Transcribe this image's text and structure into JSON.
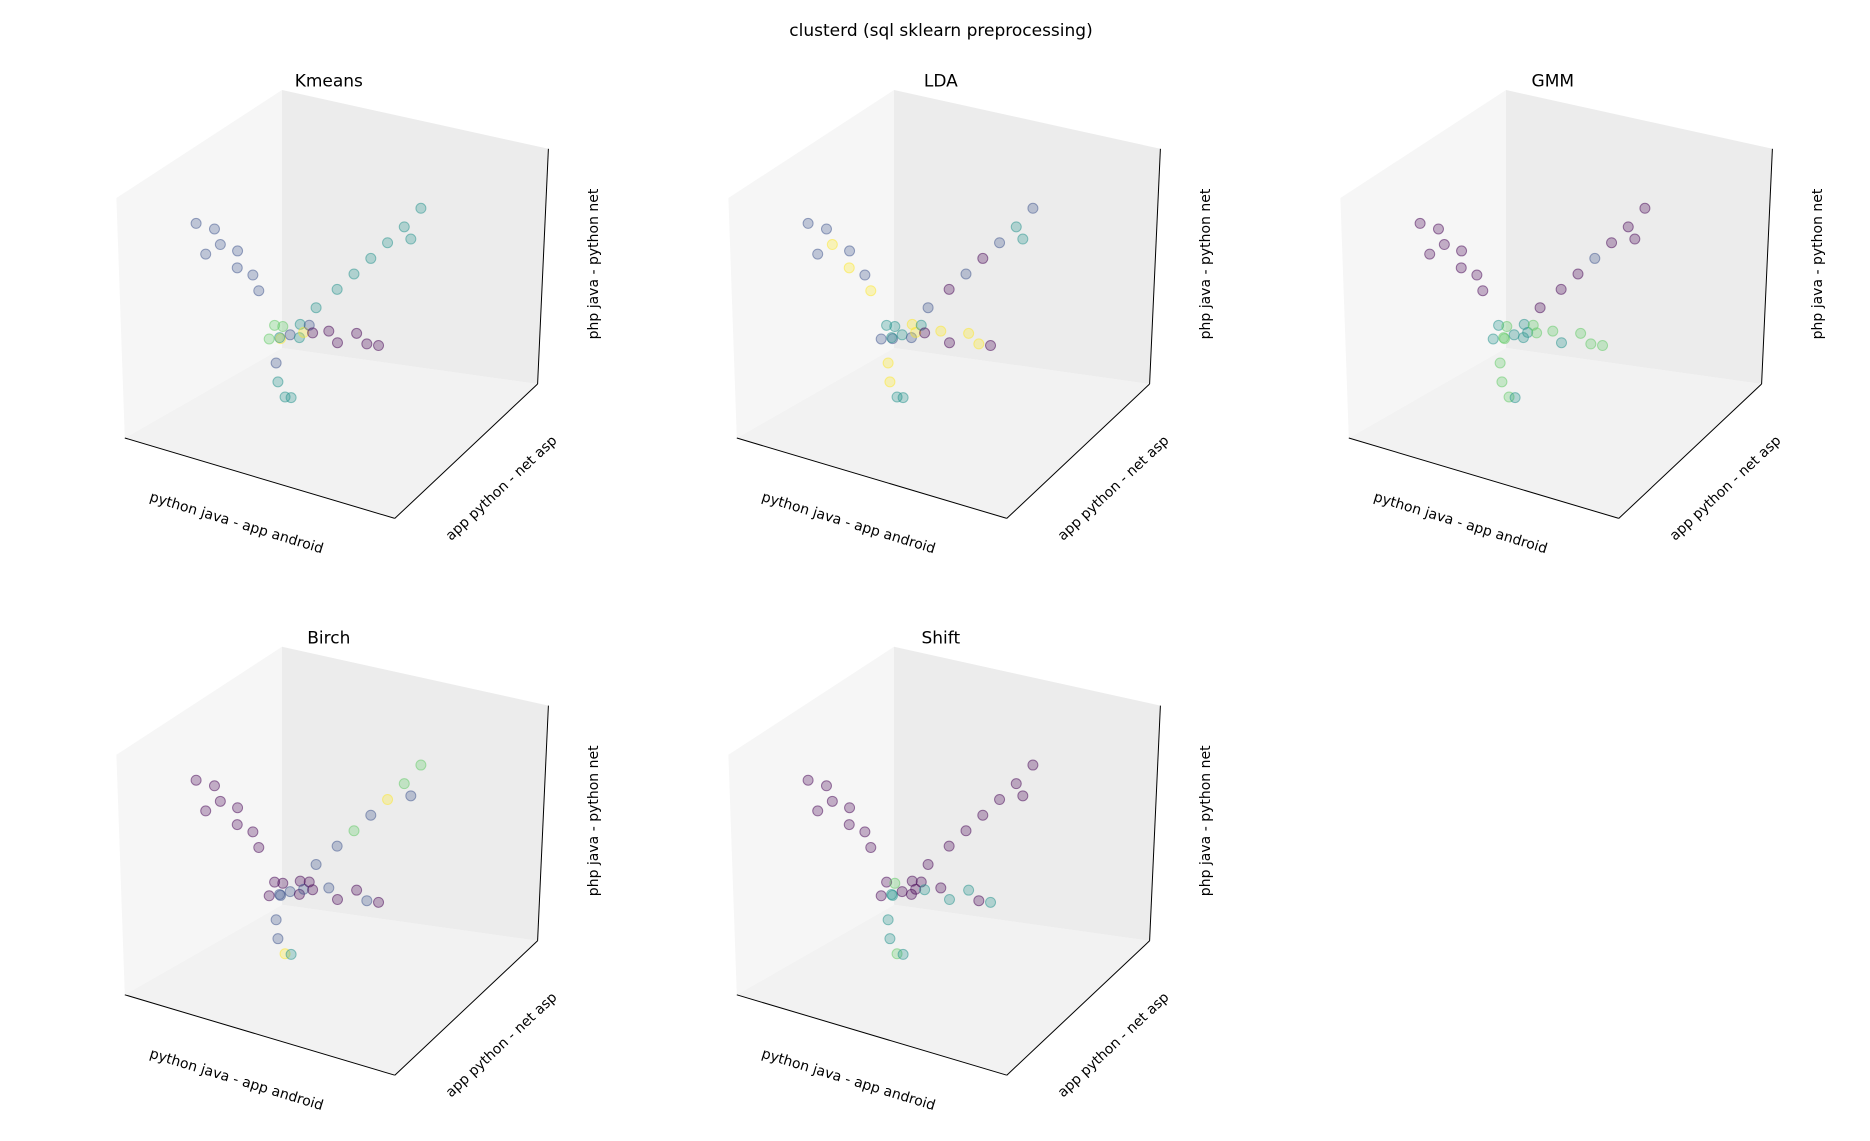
{
  "title": "clusterd (sql sklearn preprocessing)",
  "chart_data": [
    {
      "type": "scatter3d",
      "title": "Kmeans",
      "xlabel": "python java  -  app android",
      "ylabel": "app python  -  net asp",
      "zlabel": "php java  -  python net",
      "xlim": [
        0,
        1
      ],
      "ylim": [
        0,
        1
      ],
      "zlim": [
        0,
        1
      ],
      "colormap": [
        "#440154",
        "#3b528b",
        "#21918c",
        "#5ec962",
        "#fde725"
      ],
      "x": [
        0.02,
        0.06,
        0.1,
        0.13,
        0.17,
        0.2,
        0.24,
        0.08,
        0.4,
        0.44,
        0.47,
        0.5,
        0.53,
        0.56,
        0.59,
        0.62,
        0.3,
        0.34,
        0.38,
        0.33,
        0.36,
        0.4,
        0.29,
        0.37,
        0.32,
        0.42,
        0.45,
        0.5,
        0.55,
        0.6,
        0.65,
        0.7,
        0.33,
        0.38,
        0.3,
        0.42
      ],
      "y": [
        0.42,
        0.47,
        0.44,
        0.5,
        0.43,
        0.48,
        0.45,
        0.38,
        0.55,
        0.62,
        0.68,
        0.74,
        0.8,
        0.86,
        0.92,
        0.8,
        0.45,
        0.42,
        0.48,
        0.5,
        0.4,
        0.44,
        0.5,
        0.52,
        0.38,
        0.47,
        0.44,
        0.46,
        0.43,
        0.47,
        0.45,
        0.44,
        0.42,
        0.38,
        0.46,
        0.35
      ],
      "z": [
        0.69,
        0.66,
        0.62,
        0.58,
        0.55,
        0.51,
        0.47,
        0.6,
        0.4,
        0.45,
        0.49,
        0.53,
        0.57,
        0.61,
        0.66,
        0.6,
        0.35,
        0.32,
        0.36,
        0.3,
        0.38,
        0.33,
        0.28,
        0.31,
        0.33,
        0.37,
        0.36,
        0.37,
        0.35,
        0.38,
        0.36,
        0.37,
        0.15,
        0.12,
        0.2,
        0.14
      ],
      "c": [
        1,
        1,
        1,
        1,
        1,
        1,
        1,
        1,
        2,
        2,
        2,
        2,
        2,
        2,
        2,
        2,
        3,
        4,
        2,
        1,
        3,
        2,
        2,
        4,
        3,
        1,
        0,
        0,
        0,
        0,
        0,
        0,
        2,
        2,
        1,
        2
      ]
    },
    {
      "type": "scatter3d",
      "title": "LDA",
      "xlabel": "python java  -  app android",
      "ylabel": "app python  -  net asp",
      "zlabel": "php java  -  python net",
      "xlim": [
        0,
        1
      ],
      "ylim": [
        0,
        1
      ],
      "zlim": [
        0,
        1
      ],
      "colormap": [
        "#440154",
        "#3b528b",
        "#21918c",
        "#5ec962",
        "#fde725"
      ],
      "x": [
        0.02,
        0.06,
        0.1,
        0.13,
        0.17,
        0.2,
        0.24,
        0.08,
        0.4,
        0.44,
        0.47,
        0.5,
        0.53,
        0.56,
        0.59,
        0.62,
        0.3,
        0.34,
        0.38,
        0.33,
        0.36,
        0.4,
        0.29,
        0.37,
        0.32,
        0.42,
        0.45,
        0.5,
        0.55,
        0.6,
        0.65,
        0.7,
        0.33,
        0.38,
        0.3,
        0.42
      ],
      "y": [
        0.42,
        0.47,
        0.44,
        0.5,
        0.43,
        0.48,
        0.45,
        0.38,
        0.55,
        0.62,
        0.68,
        0.74,
        0.8,
        0.86,
        0.92,
        0.8,
        0.45,
        0.42,
        0.48,
        0.5,
        0.4,
        0.44,
        0.5,
        0.52,
        0.38,
        0.47,
        0.44,
        0.46,
        0.43,
        0.47,
        0.45,
        0.44,
        0.42,
        0.38,
        0.46,
        0.35
      ],
      "z": [
        0.69,
        0.66,
        0.62,
        0.58,
        0.55,
        0.51,
        0.47,
        0.6,
        0.4,
        0.45,
        0.49,
        0.53,
        0.57,
        0.61,
        0.66,
        0.6,
        0.35,
        0.32,
        0.36,
        0.3,
        0.38,
        0.33,
        0.28,
        0.31,
        0.33,
        0.37,
        0.36,
        0.37,
        0.35,
        0.38,
        0.36,
        0.37,
        0.15,
        0.12,
        0.2,
        0.14
      ],
      "c": [
        1,
        1,
        4,
        1,
        4,
        1,
        4,
        1,
        1,
        0,
        1,
        0,
        1,
        2,
        1,
        2,
        2,
        1,
        4,
        2,
        2,
        1,
        2,
        4,
        1,
        2,
        0,
        4,
        0,
        4,
        4,
        0,
        4,
        2,
        4,
        2
      ]
    },
    {
      "type": "scatter3d",
      "title": "GMM",
      "xlabel": "python java  -  app android",
      "ylabel": "app python  -  net asp",
      "zlabel": "php java  -  python net",
      "xlim": [
        0,
        1
      ],
      "ylim": [
        0,
        1
      ],
      "zlim": [
        0,
        1
      ],
      "colormap": [
        "#440154",
        "#3b528b",
        "#21918c",
        "#5ec962",
        "#fde725"
      ],
      "x": [
        0.02,
        0.06,
        0.1,
        0.13,
        0.17,
        0.2,
        0.24,
        0.08,
        0.4,
        0.44,
        0.47,
        0.5,
        0.53,
        0.56,
        0.59,
        0.62,
        0.3,
        0.34,
        0.38,
        0.33,
        0.36,
        0.4,
        0.29,
        0.37,
        0.32,
        0.42,
        0.45,
        0.5,
        0.55,
        0.6,
        0.65,
        0.7,
        0.33,
        0.38,
        0.3,
        0.42
      ],
      "y": [
        0.42,
        0.47,
        0.44,
        0.5,
        0.43,
        0.48,
        0.45,
        0.38,
        0.55,
        0.62,
        0.68,
        0.74,
        0.8,
        0.86,
        0.92,
        0.8,
        0.45,
        0.42,
        0.48,
        0.5,
        0.4,
        0.44,
        0.5,
        0.52,
        0.38,
        0.47,
        0.44,
        0.46,
        0.43,
        0.47,
        0.45,
        0.44,
        0.42,
        0.38,
        0.46,
        0.35
      ],
      "z": [
        0.69,
        0.66,
        0.62,
        0.58,
        0.55,
        0.51,
        0.47,
        0.6,
        0.4,
        0.45,
        0.49,
        0.53,
        0.57,
        0.61,
        0.66,
        0.6,
        0.35,
        0.32,
        0.36,
        0.3,
        0.38,
        0.33,
        0.28,
        0.31,
        0.33,
        0.37,
        0.36,
        0.37,
        0.35,
        0.38,
        0.36,
        0.37,
        0.15,
        0.12,
        0.2,
        0.14
      ],
      "c": [
        0,
        0,
        0,
        0,
        0,
        0,
        0,
        0,
        0,
        0,
        0,
        1,
        0,
        0,
        0,
        0,
        2,
        3,
        2,
        2,
        3,
        2,
        3,
        2,
        2,
        3,
        3,
        3,
        2,
        3,
        3,
        3,
        3,
        3,
        3,
        2
      ]
    },
    {
      "type": "scatter3d",
      "title": "Birch",
      "xlabel": "python java  -  app android",
      "ylabel": "app python  -  net asp",
      "zlabel": "php java  -  python net",
      "xlim": [
        0,
        1
      ],
      "ylim": [
        0,
        1
      ],
      "zlim": [
        0,
        1
      ],
      "colormap": [
        "#440154",
        "#3b528b",
        "#21918c",
        "#5ec962",
        "#fde725"
      ],
      "x": [
        0.02,
        0.06,
        0.1,
        0.13,
        0.17,
        0.2,
        0.24,
        0.08,
        0.4,
        0.44,
        0.47,
        0.5,
        0.53,
        0.56,
        0.59,
        0.62,
        0.3,
        0.34,
        0.38,
        0.33,
        0.36,
        0.4,
        0.29,
        0.37,
        0.32,
        0.42,
        0.45,
        0.5,
        0.55,
        0.6,
        0.65,
        0.7,
        0.33,
        0.38,
        0.3,
        0.42
      ],
      "y": [
        0.42,
        0.47,
        0.44,
        0.5,
        0.43,
        0.48,
        0.45,
        0.38,
        0.55,
        0.62,
        0.68,
        0.74,
        0.8,
        0.86,
        0.92,
        0.8,
        0.45,
        0.42,
        0.48,
        0.5,
        0.4,
        0.44,
        0.5,
        0.52,
        0.38,
        0.47,
        0.44,
        0.46,
        0.43,
        0.47,
        0.45,
        0.44,
        0.42,
        0.38,
        0.46,
        0.35
      ],
      "z": [
        0.69,
        0.66,
        0.62,
        0.58,
        0.55,
        0.51,
        0.47,
        0.6,
        0.4,
        0.45,
        0.49,
        0.53,
        0.57,
        0.61,
        0.66,
        0.6,
        0.35,
        0.32,
        0.36,
        0.3,
        0.38,
        0.33,
        0.28,
        0.31,
        0.33,
        0.37,
        0.36,
        0.37,
        0.35,
        0.38,
        0.36,
        0.37,
        0.15,
        0.12,
        0.2,
        0.14
      ],
      "c": [
        0,
        0,
        0,
        0,
        0,
        0,
        0,
        0,
        1,
        1,
        3,
        1,
        4,
        3,
        3,
        1,
        0,
        1,
        0,
        1,
        0,
        0,
        1,
        1,
        0,
        0,
        0,
        1,
        0,
        0,
        1,
        0,
        1,
        4,
        1,
        2
      ]
    },
    {
      "type": "scatter3d",
      "title": "Shift",
      "xlabel": "python java  -  app android",
      "ylabel": "app python  -  net asp",
      "zlabel": "php java  -  python net",
      "xlim": [
        0,
        1
      ],
      "ylim": [
        0,
        1
      ],
      "zlim": [
        0,
        1
      ],
      "colormap": [
        "#440154",
        "#3b528b",
        "#21918c",
        "#5ec962",
        "#fde725"
      ],
      "x": [
        0.02,
        0.06,
        0.1,
        0.13,
        0.17,
        0.2,
        0.24,
        0.08,
        0.4,
        0.44,
        0.47,
        0.5,
        0.53,
        0.56,
        0.59,
        0.62,
        0.3,
        0.34,
        0.38,
        0.33,
        0.36,
        0.4,
        0.29,
        0.37,
        0.32,
        0.42,
        0.45,
        0.5,
        0.55,
        0.6,
        0.65,
        0.7,
        0.33,
        0.38,
        0.3,
        0.42
      ],
      "y": [
        0.42,
        0.47,
        0.44,
        0.5,
        0.43,
        0.48,
        0.45,
        0.38,
        0.55,
        0.62,
        0.68,
        0.74,
        0.8,
        0.86,
        0.92,
        0.8,
        0.45,
        0.42,
        0.48,
        0.5,
        0.4,
        0.44,
        0.5,
        0.52,
        0.38,
        0.47,
        0.44,
        0.46,
        0.43,
        0.47,
        0.45,
        0.44,
        0.42,
        0.38,
        0.46,
        0.35
      ],
      "z": [
        0.69,
        0.66,
        0.62,
        0.58,
        0.55,
        0.51,
        0.47,
        0.6,
        0.4,
        0.45,
        0.49,
        0.53,
        0.57,
        0.61,
        0.66,
        0.6,
        0.35,
        0.32,
        0.36,
        0.3,
        0.38,
        0.33,
        0.28,
        0.31,
        0.33,
        0.37,
        0.36,
        0.37,
        0.35,
        0.38,
        0.36,
        0.37,
        0.15,
        0.12,
        0.2,
        0.14
      ],
      "c": [
        0,
        0,
        0,
        0,
        0,
        0,
        0,
        0,
        0,
        0,
        0,
        0,
        0,
        0,
        0,
        0,
        0,
        2,
        0,
        0,
        3,
        0,
        2,
        0,
        0,
        0,
        2,
        0,
        2,
        2,
        0,
        2,
        2,
        3,
        2,
        2
      ]
    }
  ]
}
